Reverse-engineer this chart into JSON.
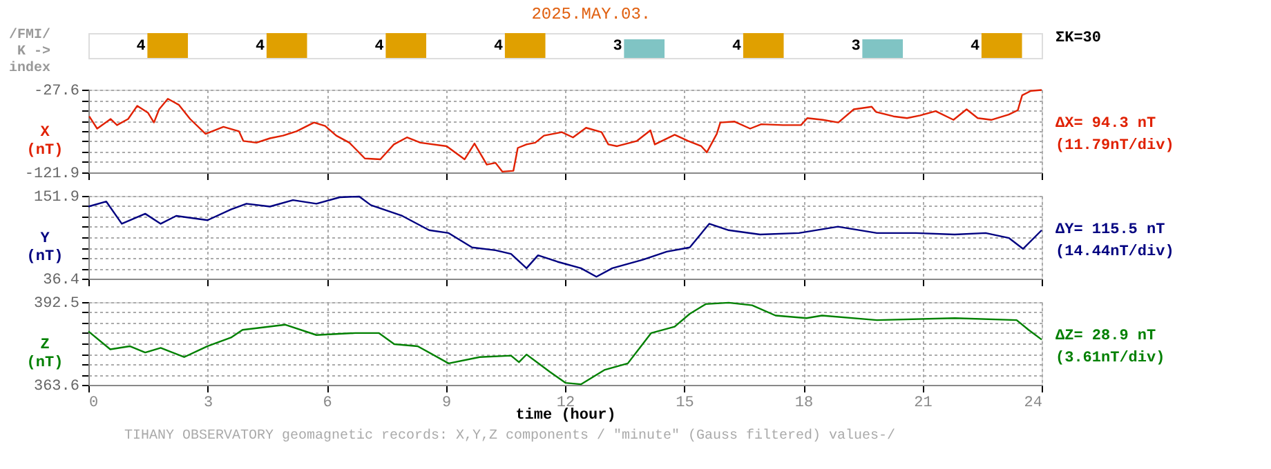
{
  "chart_data": [
    {
      "type": "bar",
      "title": "2025.MAY.03.",
      "ylabel": "/FMI/\nK ->\nindex",
      "categories": [
        null,
        null,
        null,
        null,
        null,
        null,
        null,
        null
      ],
      "values": [
        4,
        4,
        4,
        4,
        3,
        4,
        3,
        4
      ],
      "colors": [
        "#e0a000",
        "#e0a000",
        "#e0a000",
        "#e0a000",
        "#80c4c4",
        "#e0a000",
        "#80c4c4",
        "#e0a000"
      ],
      "data_labels": true,
      "tick_labels": false,
      "annotations": [
        "ΣK=30"
      ]
    },
    {
      "type": "line",
      "ylabel": "X\n(nT)",
      "xlim": [
        0,
        24
      ],
      "xticks": [
        0,
        3,
        6,
        9,
        12,
        15,
        18,
        21,
        24
      ],
      "ylim": [
        -121.9,
        -27.6
      ],
      "yticks": [
        -121.9,
        {
          "value": -110.1,
          "label": null
        },
        {
          "value": -98.3,
          "label": null
        },
        {
          "value": -86.5,
          "label": null
        },
        {
          "value": -74.8,
          "label": null
        },
        {
          "value": -63.0,
          "label": null
        },
        {
          "value": -51.2,
          "label": null
        },
        {
          "value": -39.4,
          "label": null
        },
        -27.6
      ],
      "grid": true,
      "tick_labels": "y",
      "annotations": [
        "ΔX= 94.3 nT",
        "(11.79nT/div)"
      ],
      "series": [
        {
          "color": "#e02000",
          "x": [
            0.02,
            0.22,
            0.56,
            0.72,
            1.0,
            1.23,
            1.5,
            1.65,
            1.78,
            2.0,
            2.28,
            2.56,
            2.95,
            3.4,
            3.79,
            3.9,
            4.23,
            4.57,
            4.9,
            5.24,
            5.68,
            5.96,
            6.24,
            6.57,
            6.96,
            7.35,
            7.69,
            8.02,
            8.36,
            9.02,
            9.47,
            9.72,
            10.03,
            10.25,
            10.42,
            10.7,
            10.81,
            11.03,
            11.25,
            11.47,
            11.92,
            12.2,
            12.53,
            12.92,
            13.09,
            13.31,
            13.81,
            14.15,
            14.26,
            14.76,
            15.1,
            15.43,
            15.57,
            15.82,
            15.91,
            16.27,
            16.66,
            16.94,
            17.49,
            17.94,
            18.1,
            18.49,
            18.88,
            19.27,
            19.72,
            19.83,
            20.27,
            20.61,
            20.94,
            21.33,
            21.78,
            22.11,
            22.39,
            22.73,
            23.17,
            23.4,
            23.45,
            23.51,
            23.73,
            24.0
          ],
          "values": [
            -58,
            -72,
            -61,
            -68,
            -61,
            -46,
            -54,
            -65,
            -50,
            -38,
            -45,
            -61,
            -78,
            -70,
            -75,
            -86,
            -88,
            -83,
            -80,
            -75,
            -65,
            -69,
            -80,
            -88,
            -106,
            -107,
            -90,
            -82,
            -88,
            -92,
            -107,
            -89,
            -113,
            -111,
            -121,
            -120,
            -94,
            -90,
            -88,
            -80,
            -76,
            -82,
            -71,
            -76,
            -90,
            -92,
            -86,
            -74,
            -90,
            -79,
            -86,
            -92,
            -99,
            -78,
            -65,
            -64,
            -72,
            -67,
            -68,
            -68,
            -60,
            -62,
            -65,
            -50,
            -47,
            -53,
            -58,
            -60,
            -57,
            -52,
            -62,
            -50,
            -60,
            -62,
            -56,
            -51,
            -43,
            -34,
            -29,
            -28
          ]
        }
      ]
    },
    {
      "type": "line",
      "ylabel": "Y\n(nT)",
      "xlim": [
        0,
        24
      ],
      "xticks": [
        0,
        3,
        6,
        9,
        12,
        15,
        18,
        21,
        24
      ],
      "ylim": [
        36.4,
        151.9
      ],
      "yticks": [
        36.4,
        {
          "value": 50.8,
          "label": null
        },
        {
          "value": 65.3,
          "label": null
        },
        {
          "value": 79.7,
          "label": null
        },
        {
          "value": 94.2,
          "label": null
        },
        {
          "value": 108.6,
          "label": null
        },
        {
          "value": 123.0,
          "label": null
        },
        {
          "value": 137.5,
          "label": null
        },
        151.9
      ],
      "grid": true,
      "tick_labels": "y",
      "annotations": [
        "ΔY= 115.5 nT",
        "(14.44nT/div)"
      ],
      "series": [
        {
          "color": "#000080",
          "x": [
            0,
            0.45,
            0.84,
            1.43,
            1.82,
            2.21,
            3.0,
            3.59,
            3.98,
            4.57,
            5.15,
            5.74,
            6.33,
            6.82,
            7.11,
            7.9,
            8.58,
            9.07,
            9.66,
            10.25,
            10.64,
            11.03,
            11.32,
            11.81,
            12.4,
            12.79,
            13.19,
            13.97,
            14.56,
            15.14,
            15.63,
            16.12,
            16.91,
            17.89,
            18.87,
            19.85,
            20.83,
            21.81,
            22.59,
            23.18,
            23.53,
            24.0
          ],
          "values": [
            137,
            144,
            113,
            127,
            113,
            124,
            118,
            133,
            141,
            137,
            146,
            141,
            150,
            151,
            139,
            124,
            104,
            100,
            80,
            76,
            71,
            51,
            69,
            60,
            51,
            39,
            51,
            63,
            74,
            80,
            113,
            104,
            98,
            100,
            109,
            100,
            100,
            98,
            100,
            93,
            78,
            104
          ]
        }
      ]
    },
    {
      "type": "line",
      "ylabel": "Z\n(nT)",
      "xlabel": "time (hour)",
      "xlim": [
        0,
        24
      ],
      "xticks": [
        0,
        3,
        6,
        9,
        12,
        15,
        18,
        21,
        24
      ],
      "ylim": [
        363.6,
        392.5
      ],
      "yticks": [
        363.6,
        {
          "value": 367.2,
          "label": null
        },
        {
          "value": 370.8,
          "label": null
        },
        {
          "value": 374.4,
          "label": null
        },
        {
          "value": 378.1,
          "label": null
        },
        {
          "value": 381.7,
          "label": null
        },
        {
          "value": 385.3,
          "label": null
        },
        {
          "value": 388.9,
          "label": null
        },
        392.5
      ],
      "grid": true,
      "annotations": [
        "ΔZ= 28.9 nT",
        "(3.61nT/div)",
        "TIHANY OBSERVATORY   geomagnetic records:  X,Y,Z  components    / \"minute\" (Gauss filtered) values-/"
      ],
      "series": [
        {
          "color": "#008000",
          "x": [
            0,
            0.55,
            1.04,
            1.43,
            1.82,
            2.41,
            3.0,
            3.59,
            3.88,
            4.96,
            5.74,
            6.72,
            7.31,
            7.7,
            8.29,
            9.07,
            9.85,
            10.64,
            10.84,
            11.03,
            11.62,
            12.01,
            12.4,
            12.99,
            13.58,
            14.17,
            14.76,
            15.14,
            15.54,
            16.12,
            16.71,
            17.3,
            18.08,
            18.47,
            19.85,
            21.81,
            23.37,
            23.67,
            24.0
          ],
          "values": [
            382.3,
            376.0,
            377.1,
            374.9,
            376.5,
            373.3,
            377.1,
            380.1,
            382.8,
            384.6,
            381.0,
            381.7,
            381.7,
            377.8,
            377.1,
            371.1,
            373.3,
            373.8,
            371.5,
            374.2,
            368.1,
            364.3,
            363.8,
            368.8,
            371.1,
            381.7,
            383.9,
            388.4,
            391.8,
            392.3,
            391.4,
            387.8,
            386.9,
            387.8,
            386.2,
            386.9,
            386.2,
            382.8,
            379.4
          ]
        }
      ]
    }
  ]
}
